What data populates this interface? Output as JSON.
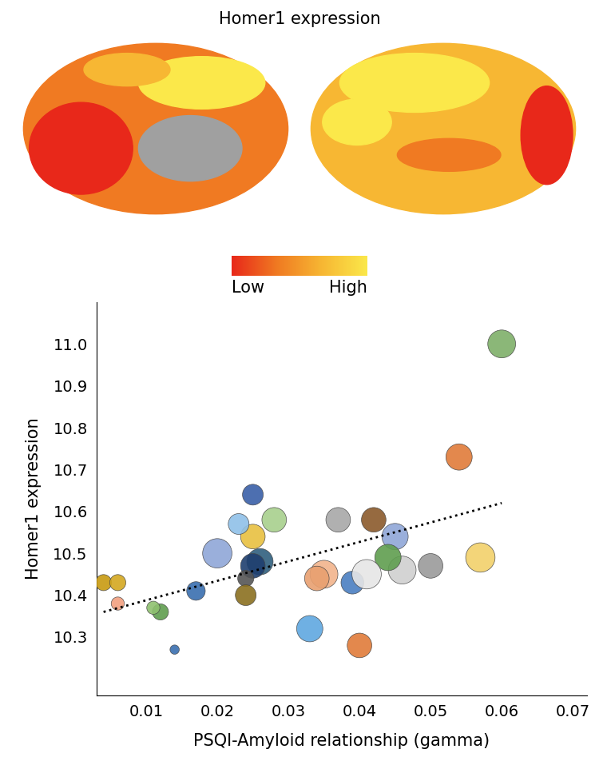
{
  "chart_data": {
    "type": "scatter",
    "title": "Homer1 expression",
    "x_label": "PSQI-Amyloid relationship (gamma)",
    "y_label": "Homer1 expression",
    "colorbar_labels": [
      "Low",
      "High"
    ],
    "colorbar_colors": [
      "#e8281a",
      "#f07a22",
      "#f7b733",
      "#fbe84a"
    ],
    "x": [
      0.06,
      0.054,
      0.057,
      0.05,
      0.045,
      0.046,
      0.044,
      0.042,
      0.037,
      0.04,
      0.039,
      0.041,
      0.035,
      0.034,
      0.033,
      0.028,
      0.026,
      0.025,
      0.025,
      0.025,
      0.023,
      0.02,
      0.024,
      0.024,
      0.017,
      0.012,
      0.011,
      0.006,
      0.004,
      0.006,
      0.014
    ],
    "values": [
      11.0,
      10.73,
      10.49,
      10.47,
      10.54,
      10.46,
      10.49,
      10.58,
      10.58,
      10.28,
      10.43,
      10.45,
      10.45,
      10.44,
      10.32,
      10.58,
      10.48,
      10.47,
      10.64,
      10.54,
      10.57,
      10.5,
      10.44,
      10.4,
      10.41,
      10.36,
      10.37,
      10.38,
      10.43,
      10.43,
      10.27
    ],
    "sizes": [
      9,
      8,
      10,
      7,
      8,
      9,
      8,
      7,
      7,
      7,
      6,
      10,
      9,
      7,
      8,
      7,
      8,
      7,
      5,
      7,
      5,
      10,
      3,
      5,
      4,
      3,
      2,
      2,
      3,
      3,
      1
    ],
    "colors": [
      "#7fb069",
      "#e07b39",
      "#f2d16b",
      "#9a9a9a",
      "#8fa6d8",
      "#d0d0d0",
      "#5f9e4f",
      "#8b5a2b",
      "#a8a8a8",
      "#e07b39",
      "#4a7fc1",
      "#e6e6e6",
      "#f2b48c",
      "#e8a070",
      "#5fa8e0",
      "#a8d08d",
      "#2f5f7f",
      "#1f3f6f",
      "#3a5fa8",
      "#e8c040",
      "#8fc0e8",
      "#8fa6d8",
      "#555555",
      "#8b7020",
      "#3a6fb0",
      "#5f9e4f",
      "#8fc070",
      "#f2a080",
      "#c89a10",
      "#d4a820",
      "#3a6fb0"
    ],
    "trend_line": {
      "x": [
        0.004,
        0.06
      ],
      "values": [
        10.36,
        10.62
      ],
      "line_style": "dotted",
      "color": "#000000"
    },
    "xlim": [
      0.003,
      0.072
    ],
    "ylim": [
      10.16,
      11.1
    ],
    "xticks": [
      0.01,
      0.02,
      0.03,
      0.04,
      0.05,
      0.06,
      0.07
    ],
    "yticks": [
      10.3,
      10.4,
      10.5,
      10.6,
      10.7,
      10.8,
      10.9,
      11.0
    ],
    "grid": false
  }
}
